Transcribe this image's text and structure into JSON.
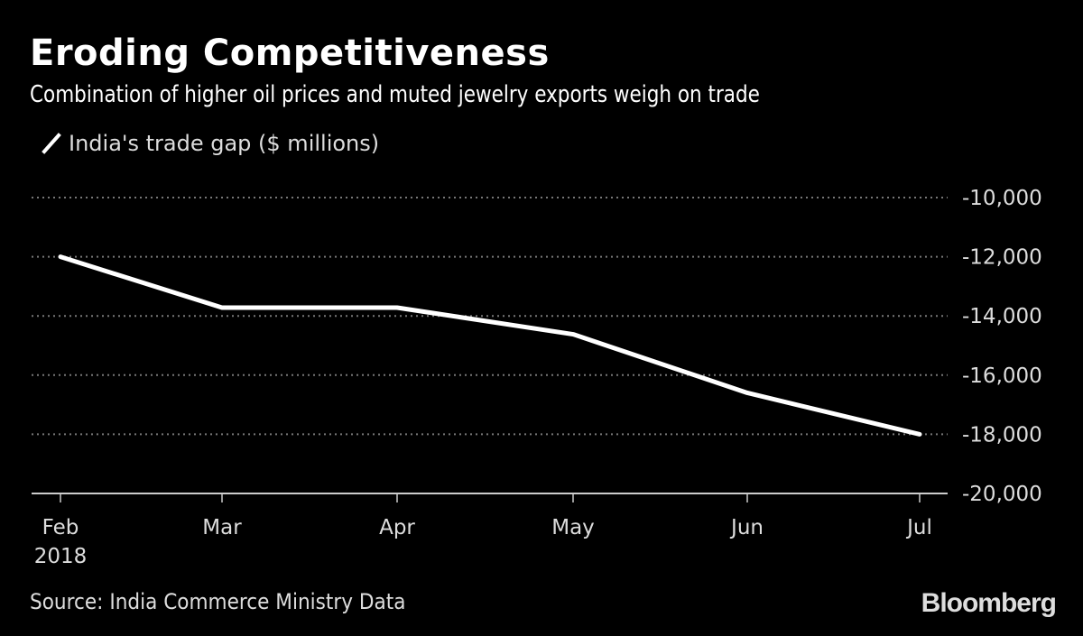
{
  "header": {
    "title": "Eroding Competitiveness",
    "subtitle": "Combination of higher oil prices and muted jewelry exports weigh on trade"
  },
  "footer": {
    "source": "Source: India Commerce Ministry Data",
    "brand": "Bloomberg"
  },
  "colors": {
    "background": "#000000",
    "line": "#ffffff",
    "grid": "#777777",
    "text": "#dddddd"
  },
  "chart_data": {
    "type": "line",
    "title": "Eroding Competitiveness",
    "subtitle": "Combination of higher oil prices and muted jewelry exports weigh on trade",
    "xlabel": "",
    "ylabel": "",
    "x": [
      "Feb",
      "Mar",
      "Apr",
      "May",
      "Jun",
      "Jul"
    ],
    "x_sublabels": [
      "2018",
      "",
      "",
      "",
      "",
      ""
    ],
    "series": [
      {
        "name": "India's trade gap ($ millions)",
        "values": [
          -12000,
          -13720,
          -13720,
          -14620,
          -16600,
          -18000
        ]
      }
    ],
    "ylim": [
      -20000,
      -10000
    ],
    "yticks": [
      -10000,
      -12000,
      -14000,
      -16000,
      -18000,
      -20000
    ],
    "ytick_labels": [
      "-10,000",
      "-12,000",
      "-14,000",
      "-16,000",
      "-18,000",
      "-20,000"
    ],
    "grid": true,
    "grid_style": "dotted",
    "y_axis_side": "right",
    "legend": "top-left"
  }
}
